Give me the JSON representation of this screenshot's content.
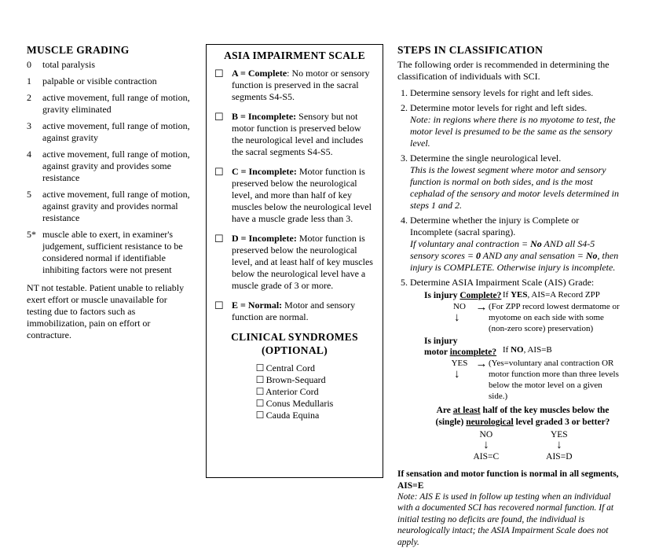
{
  "muscleGrading": {
    "title": "MUSCLE GRADING",
    "items": [
      {
        "num": "0",
        "text": "total paralysis"
      },
      {
        "num": "1",
        "text": "palpable or visible contraction"
      },
      {
        "num": "2",
        "text": "active movement, full range of motion, gravity eliminated"
      },
      {
        "num": "3",
        "text": "active movement, full range of motion, against gravity"
      },
      {
        "num": "4",
        "text": "active movement, full range of motion, against gravity and provides some resistance"
      },
      {
        "num": "5",
        "text": "active movement, full range of motion, against gravity and provides normal resistance"
      },
      {
        "num": "5*",
        "text": "muscle able to exert, in examiner's judgement, sufficient resistance to be considered normal if identifiable inhibiting factors were not present"
      }
    ],
    "nt": "NT not testable. Patient unable to reliably exert effort or muscle unavailable for testing due to factors such as immobilization, pain on effort or contracture."
  },
  "ais": {
    "title": "ASIA IMPAIRMENT SCALE",
    "items": [
      {
        "letter": "A",
        "label": "Complete",
        "sep": ": ",
        "text": "No motor or sensory function is preserved in the sacral segments S4-S5."
      },
      {
        "letter": "B",
        "label": "Incomplete:",
        "sep": " ",
        "text": "Sensory but not motor function is preserved below the neurological level and includes the sacral segments S4-S5."
      },
      {
        "letter": "C",
        "label": "Incomplete:",
        "sep": " ",
        "text": "Motor function is preserved below the neurological level, and more than half of key muscles below the neurological level have a muscle grade less than 3."
      },
      {
        "letter": "D",
        "label": "Incomplete:",
        "sep": " ",
        "text": "Motor function is preserved below the neurological level, and at least half of key muscles below the neurological level have a muscle grade of 3 or more."
      },
      {
        "letter": "E",
        "label": "Normal:",
        "sep": " ",
        "text": "Motor and sensory function are normal."
      }
    ]
  },
  "syndromes": {
    "title1": "CLINICAL SYNDROMES",
    "title2": "(OPTIONAL)",
    "items": [
      "Central  Cord",
      "Brown-Sequard",
      "Anterior Cord",
      "Conus Medullaris",
      "Cauda Equina"
    ]
  },
  "steps": {
    "title": "STEPS IN CLASSIFICATION",
    "intro": "The following order is recommended in determining the classification of individuals with SCI.",
    "s1": "Determine sensory levels for right and left sides.",
    "s2": "Determine motor levels for right and left sides.",
    "s2note": "Note: in regions where there is no myotome to test, the motor level is presumed to be the same as the sensory level.",
    "s3": "Determine the single neurological level.",
    "s3note": "This is the lowest segment where motor and sensory function is normal on both sides, and is the most cephalad of the sensory and motor levels determined in steps 1 and 2.",
    "s4": "Determine whether the injury is Complete or Incomplete (sacral sparing).",
    "s4note_a": "If voluntary anal contraction = ",
    "s4note_b": " AND all S4-5 sensory scores = ",
    "s4note_c": " AND any anal sensation = ",
    "s4note_d": ", then injury is COMPLETE. Otherwise injury is incomplete.",
    "no": "No",
    "zero": "0",
    "s5": "Determine ASIA Impairment Scale (AIS) Grade:",
    "flow": {
      "q1a": "Is injury ",
      "q1b": "Complete?",
      "yesA": "If ",
      "yesA2": "YES",
      "yesA3": ", AIS=A Record ZPP",
      "zpp": "(For ZPP record lowest dermatome or myotome on each side with some (non-zero score) preservation)",
      "q2a": "Is injury",
      "q2b": "motor ",
      "q2c": "incomplete?",
      "noB_a": "If ",
      "noB_b": "NO",
      "noB_c": ", AIS=B",
      "yesNote": "(Yes=voluntary anal contraction OR motor function more than three levels below the motor level on a given side.)",
      "q3a": "Are ",
      "q3b": "at least",
      "q3c": " half of the key muscles below the",
      "q3d": "(single) ",
      "q3e": "neurological",
      "q3f": " level graded 3 or better?",
      "ansNO": "NO",
      "ansYES": "YES",
      "aisC": "AIS=C",
      "aisD": "AIS=D"
    },
    "eblock_a": "If sensation and motor function is normal in all segments, AIS=E",
    "eblock_b": "Note: AIS E is used in follow up testing when an individual with a documented SCI has recovered normal function.  If at initial testing no deficits are found, the individual is neurologically intact; the  ASIA Impairment Scale does not apply."
  },
  "glyphs": {
    "checkbox": "☐",
    "rarrow": "→",
    "darrow": "↓"
  }
}
